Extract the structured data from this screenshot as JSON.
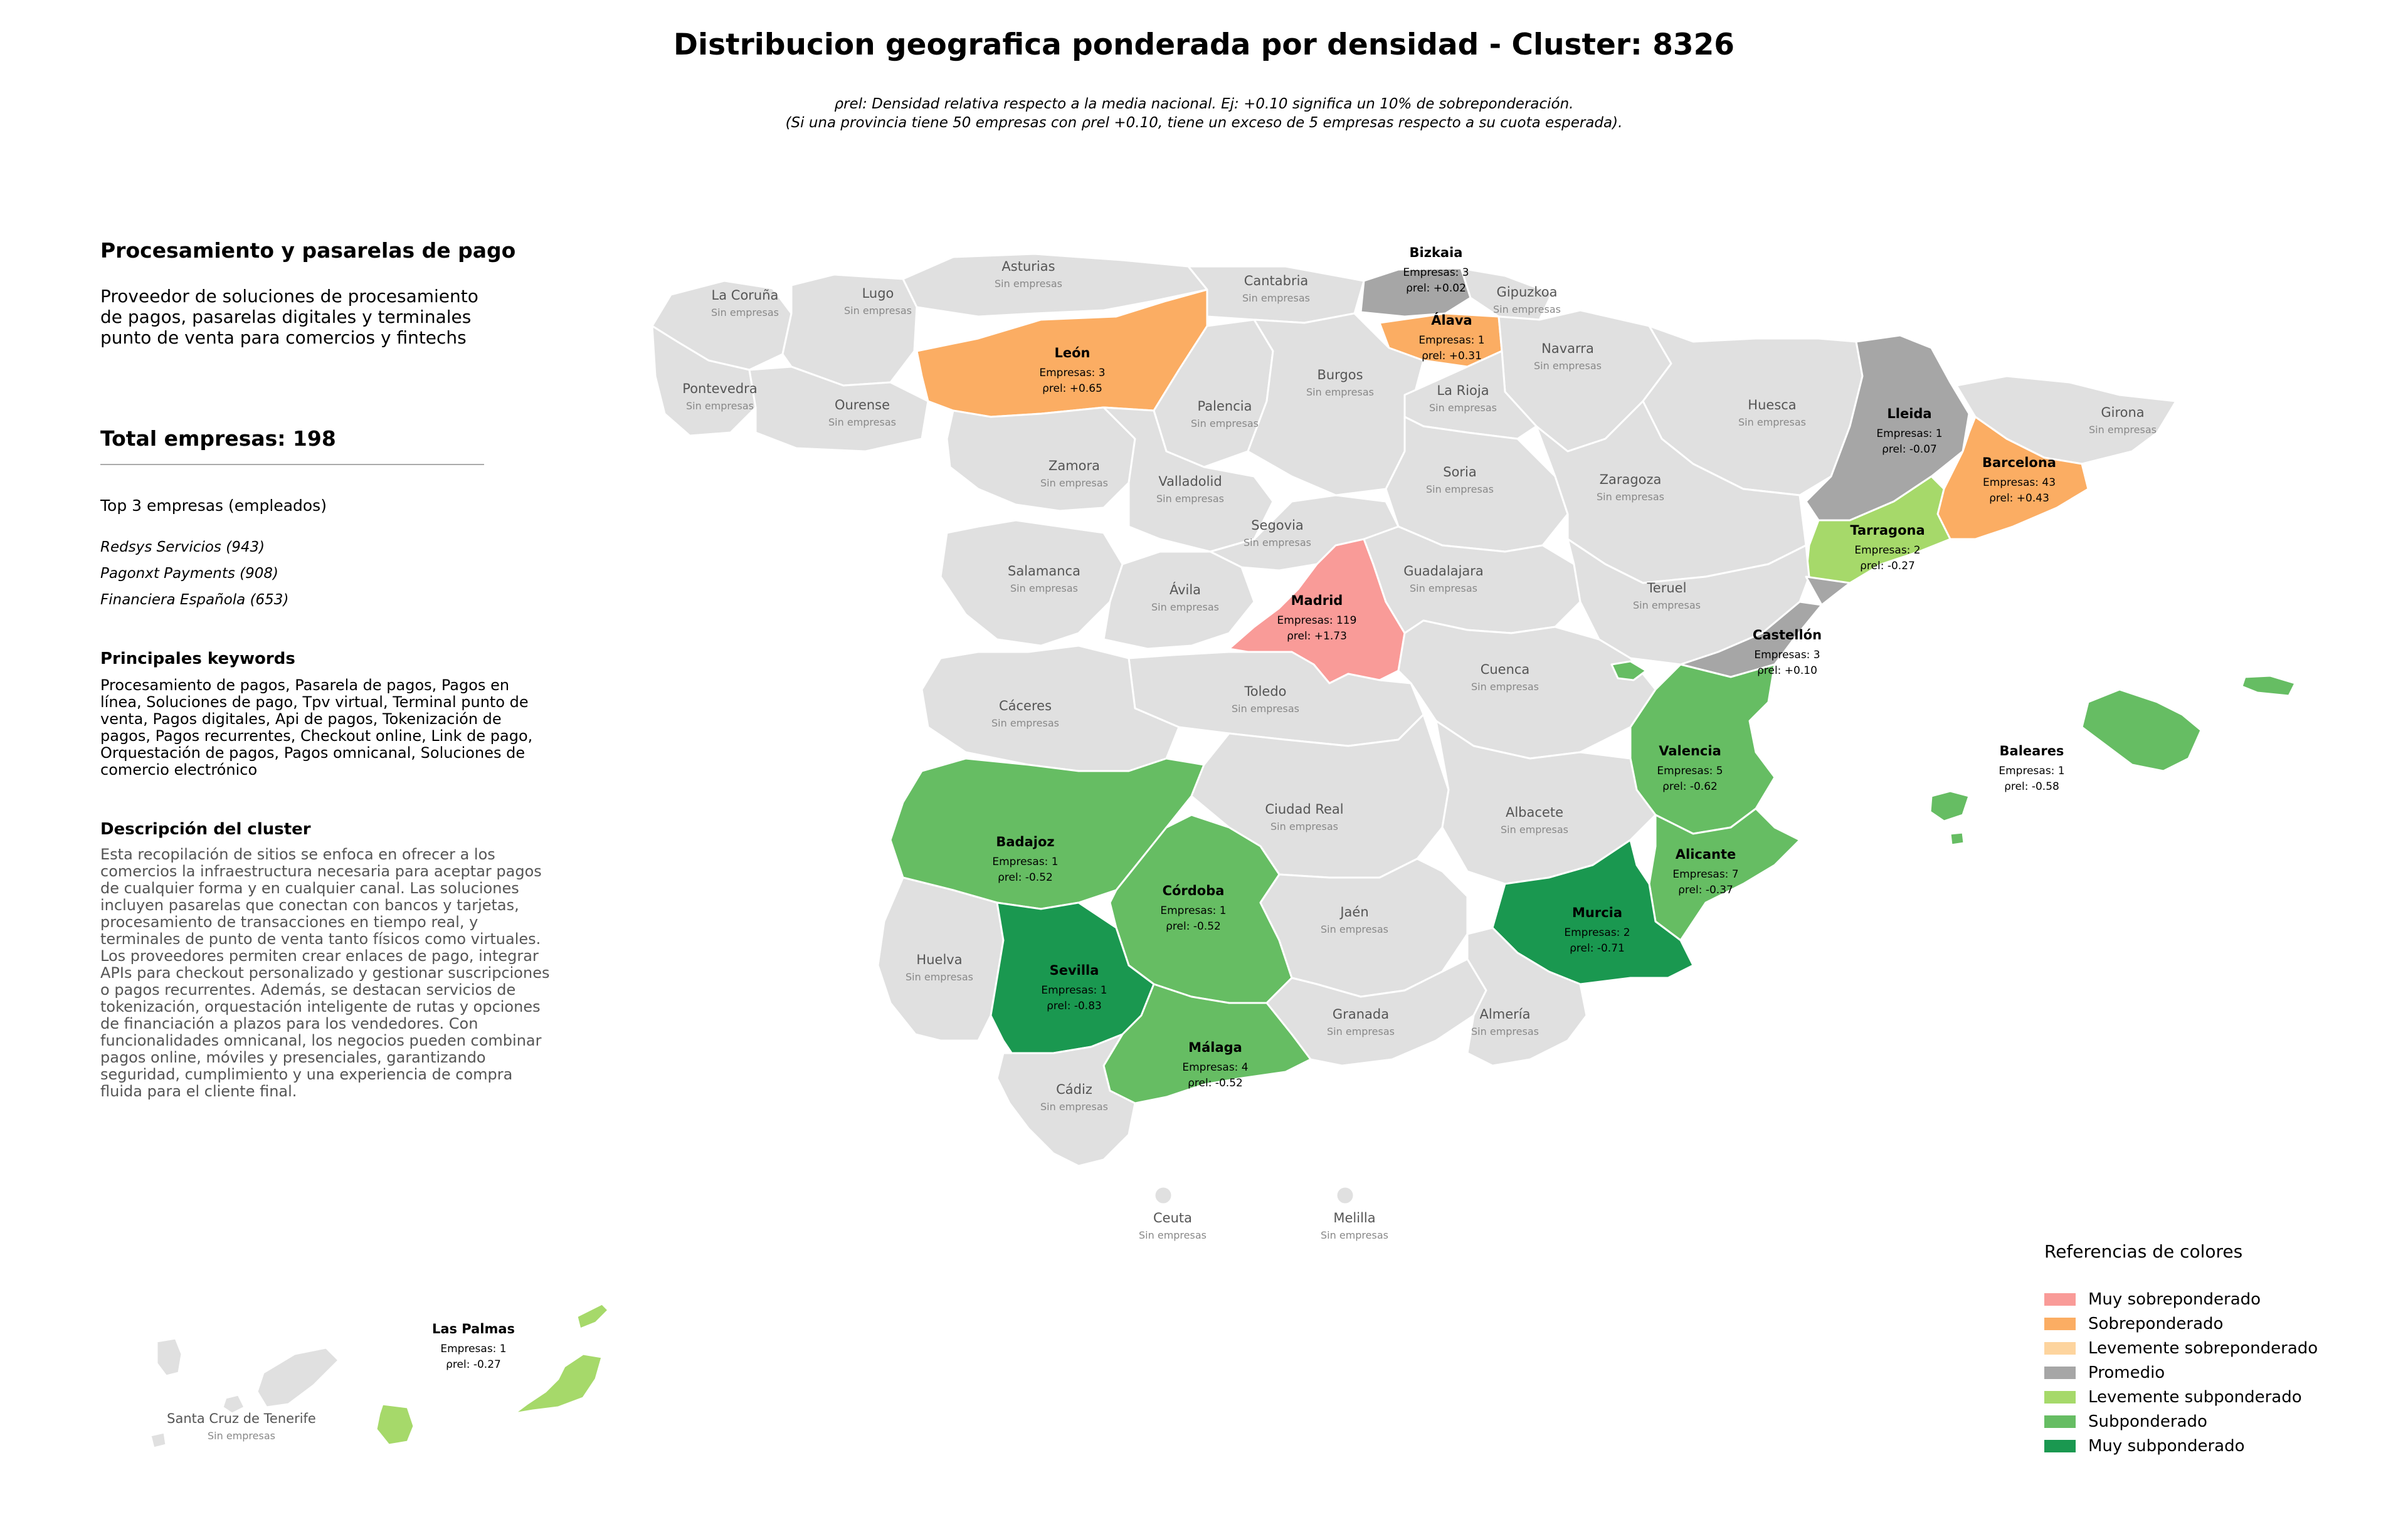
{
  "title": "Distribucion geografica ponderada por densidad - Cluster: 8326",
  "note": {
    "line1_pre": ": Densidad relativa respecto a la media nacional. Ej: +0.10 significa un 10% de sobreponderación.",
    "line2": "(Si una provincia tiene 50 empresas con ρrel +0.10, tiene un exceso de 5 empresas respecto a su cuota esperada).",
    "symbol": "ρrel"
  },
  "panel": {
    "heading": "Procesamiento y pasarelas de pago",
    "description": "Proveedor de soluciones de procesamiento de pagos, pasarelas digitales y terminales punto de venta para comercios y fintechs",
    "total_label": "Total empresas: 198",
    "top_label": "Top 3 empresas (empleados)",
    "top_companies": [
      "Redsys Servicios (943)",
      "Pagonxt Payments (908)",
      "Financiera Española (653)"
    ],
    "keywords_heading": "Principales keywords",
    "keywords": "Procesamiento de pagos, Pasarela de pagos, Pagos en línea, Soluciones de pago, Tpv virtual, Terminal punto de venta, Pagos digitales, Api de pagos, Tokenización de pagos, Pagos recurrentes, Checkout online, Link de pago, Orquestación de pagos, Pagos omnicanal, Soluciones de comercio electrónico",
    "cluster_heading": "Descripción del cluster",
    "cluster_description": "Esta recopilación de sitios se enfoca en ofrecer a los comercios la infraestructura necesaria para aceptar pagos de cualquier forma y en cualquier canal. Las soluciones incluyen pasarelas que conectan con bancos y tarjetas, procesamiento de transacciones en tiempo real, y terminales de punto de venta tanto físicos como virtuales. Los proveedores permiten crear enlaces de pago, integrar APIs para checkout personalizado y gestionar suscripciones o pagos recurrentes. Además, se destacan servicios de tokenización, orquestación inteligente de rutas y opciones de financiación a plazos para los vendedores. Con funcionalidades omnicanal, los negocios pueden combinar pagos online, móviles y presenciales, garantizando seguridad, cumplimiento y una experiencia de compra fluida para el cliente final."
  },
  "legend": {
    "title": "Referencias de colores",
    "items": [
      {
        "label": "Muy sobreponderado",
        "color": "#f99b98"
      },
      {
        "label": "Sobreponderado",
        "color": "#fbad63"
      },
      {
        "label": "Levemente sobreponderado",
        "color": "#fdd49e"
      },
      {
        "label": "Promedio",
        "color": "#a6a6a6"
      },
      {
        "label": "Levemente subponderado",
        "color": "#a6d96a"
      },
      {
        "label": "Subponderado",
        "color": "#66bd63"
      },
      {
        "label": "Muy subponderado",
        "color": "#1a9850"
      }
    ]
  },
  "map": {
    "no_data_color": "#e0e0e0",
    "no_data_label": "Sin empresas",
    "count_prefix": "Empresas: ",
    "rho_symbol": "ρrel",
    "provinces": [
      {
        "name": "La Coruña",
        "category": "none"
      },
      {
        "name": "Lugo",
        "category": "none"
      },
      {
        "name": "Asturias",
        "category": "none"
      },
      {
        "name": "Cantabria",
        "category": "none"
      },
      {
        "name": "Bizkaia",
        "category": "Promedio",
        "companies": 3,
        "rho": "+0.02"
      },
      {
        "name": "Gipuzkoa",
        "category": "none"
      },
      {
        "name": "Álava",
        "category": "Sobreponderado",
        "companies": 1,
        "rho": "+0.31"
      },
      {
        "name": "Navarra",
        "category": "none"
      },
      {
        "name": "Pontevedra",
        "category": "none"
      },
      {
        "name": "Ourense",
        "category": "none"
      },
      {
        "name": "León",
        "category": "Sobreponderado",
        "companies": 3,
        "rho": "+0.65"
      },
      {
        "name": "Palencia",
        "category": "none"
      },
      {
        "name": "Burgos",
        "category": "none"
      },
      {
        "name": "La Rioja",
        "category": "none"
      },
      {
        "name": "Huesca",
        "category": "none"
      },
      {
        "name": "Lleida",
        "category": "Promedio",
        "companies": 1,
        "rho": "-0.07"
      },
      {
        "name": "Girona",
        "category": "none"
      },
      {
        "name": "Barcelona",
        "category": "Sobreponderado",
        "companies": 43,
        "rho": "+0.43"
      },
      {
        "name": "Tarragona",
        "category": "Levemente subponderado",
        "companies": 2,
        "rho": "-0.27"
      },
      {
        "name": "Zamora",
        "category": "none"
      },
      {
        "name": "Valladolid",
        "category": "none"
      },
      {
        "name": "Soria",
        "category": "none"
      },
      {
        "name": "Zaragoza",
        "category": "none"
      },
      {
        "name": "Segovia",
        "category": "none"
      },
      {
        "name": "Salamanca",
        "category": "none"
      },
      {
        "name": "Ávila",
        "category": "none"
      },
      {
        "name": "Madrid",
        "category": "Muy sobreponderado",
        "companies": 119,
        "rho": "+1.73"
      },
      {
        "name": "Guadalajara",
        "category": "none"
      },
      {
        "name": "Teruel",
        "category": "none"
      },
      {
        "name": "Castellón",
        "category": "Promedio",
        "companies": 3,
        "rho": "+0.10"
      },
      {
        "name": "Cuenca",
        "category": "none"
      },
      {
        "name": "Toledo",
        "category": "none"
      },
      {
        "name": "Cáceres",
        "category": "none"
      },
      {
        "name": "Valencia",
        "category": "Subponderado",
        "companies": 5,
        "rho": "-0.62"
      },
      {
        "name": "Baleares",
        "category": "Subponderado",
        "companies": 1,
        "rho": "-0.58"
      },
      {
        "name": "Badajoz",
        "category": "Subponderado",
        "companies": 1,
        "rho": "-0.52"
      },
      {
        "name": "Ciudad Real",
        "category": "none"
      },
      {
        "name": "Albacete",
        "category": "none"
      },
      {
        "name": "Alicante",
        "category": "Subponderado",
        "companies": 7,
        "rho": "-0.37"
      },
      {
        "name": "Córdoba",
        "category": "Subponderado",
        "companies": 1,
        "rho": "-0.52"
      },
      {
        "name": "Jaén",
        "category": "none"
      },
      {
        "name": "Murcia",
        "category": "Muy subponderado",
        "companies": 2,
        "rho": "-0.71"
      },
      {
        "name": "Huelva",
        "category": "none"
      },
      {
        "name": "Sevilla",
        "category": "Muy subponderado",
        "companies": 1,
        "rho": "-0.83"
      },
      {
        "name": "Granada",
        "category": "none"
      },
      {
        "name": "Almería",
        "category": "none"
      },
      {
        "name": "Málaga",
        "category": "Subponderado",
        "companies": 4,
        "rho": "-0.52"
      },
      {
        "name": "Cádiz",
        "category": "none"
      },
      {
        "name": "Ceuta",
        "category": "none"
      },
      {
        "name": "Melilla",
        "category": "none"
      },
      {
        "name": "Las Palmas",
        "category": "Levemente subponderado",
        "companies": 1,
        "rho": "-0.27"
      },
      {
        "name": "Santa Cruz de Tenerife",
        "category": "none"
      }
    ]
  }
}
